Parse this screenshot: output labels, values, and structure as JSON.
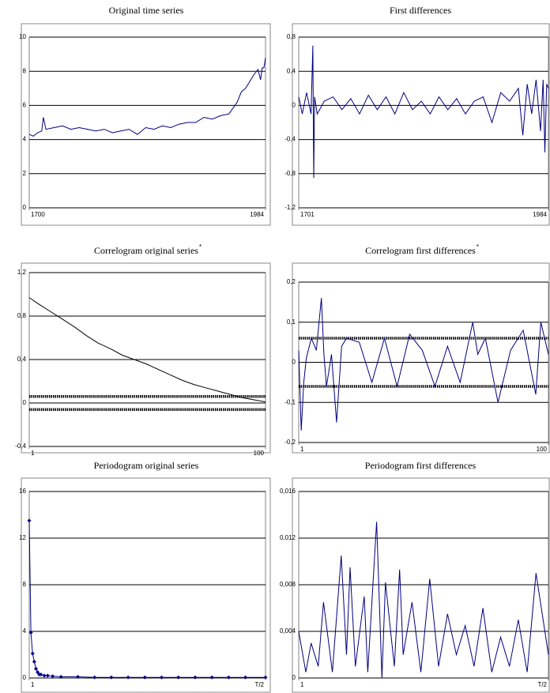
{
  "chart_data": [
    {
      "type": "line",
      "title": "Original time series",
      "color": "#000080",
      "x": [
        1700,
        1705,
        1710,
        1715,
        1717,
        1720,
        1730,
        1740,
        1750,
        1760,
        1770,
        1780,
        1790,
        1800,
        1810,
        1820,
        1830,
        1840,
        1850,
        1860,
        1870,
        1880,
        1890,
        1900,
        1910,
        1920,
        1930,
        1940,
        1950,
        1955,
        1960,
        1965,
        1970,
        1975,
        1978,
        1980,
        1982,
        1984
      ],
      "values": [
        4.3,
        4.2,
        4.4,
        4.5,
        5.3,
        4.6,
        4.7,
        4.8,
        4.6,
        4.7,
        4.6,
        4.5,
        4.6,
        4.4,
        4.5,
        4.6,
        4.3,
        4.7,
        4.6,
        4.8,
        4.7,
        4.9,
        5.0,
        5.0,
        5.3,
        5.2,
        5.4,
        5.5,
        6.2,
        6.8,
        7.0,
        7.4,
        7.8,
        8.1,
        7.5,
        8.2,
        8.2,
        8.8
      ],
      "xlim": [
        1700,
        1984
      ],
      "xticks": [
        1700,
        1984
      ],
      "ylim": [
        0,
        10
      ],
      "yticks": [
        0,
        2,
        4,
        6,
        8,
        10
      ],
      "grid": true
    },
    {
      "type": "line",
      "title": "First differences",
      "color": "#000080",
      "x": [
        1701,
        1705,
        1710,
        1715,
        1717,
        1718,
        1719,
        1722,
        1730,
        1740,
        1750,
        1760,
        1770,
        1780,
        1790,
        1800,
        1810,
        1820,
        1830,
        1840,
        1850,
        1860,
        1870,
        1880,
        1890,
        1900,
        1910,
        1920,
        1930,
        1940,
        1950,
        1955,
        1960,
        1965,
        1970,
        1975,
        1978,
        1980,
        1982,
        1984
      ],
      "values": [
        0.1,
        -0.1,
        0.15,
        -0.1,
        0.7,
        -0.85,
        0.1,
        -0.1,
        0.05,
        0.1,
        -0.05,
        0.08,
        -0.1,
        0.12,
        -0.05,
        0.1,
        -0.1,
        0.15,
        -0.05,
        0.05,
        -0.1,
        0.1,
        -0.05,
        0.08,
        -0.1,
        0.05,
        0.1,
        -0.2,
        0.15,
        0.05,
        0.2,
        -0.35,
        0.25,
        -0.1,
        0.3,
        -0.3,
        0.3,
        -0.55,
        0.25,
        0.2
      ],
      "xlim": [
        1701,
        1984
      ],
      "xticks": [
        1701,
        1984
      ],
      "ylim": [
        -1.2,
        0.8
      ],
      "yticks": [
        {
          "value": -1.2,
          "label": "-1,2"
        },
        {
          "value": -0.8,
          "label": "-0,8"
        },
        {
          "value": -0.4,
          "label": "-0,4"
        },
        0,
        {
          "value": 0.4,
          "label": "0,4"
        },
        {
          "value": 0.8,
          "label": "0,8"
        }
      ],
      "grid": true
    },
    {
      "type": "line",
      "title": "Correlogram original series",
      "title_mark": "*",
      "color": "#000000",
      "x": [
        1,
        5,
        10,
        15,
        20,
        25,
        30,
        35,
        40,
        45,
        50,
        55,
        60,
        65,
        70,
        75,
        80,
        85,
        90,
        95,
        100
      ],
      "values": [
        0.97,
        0.91,
        0.84,
        0.77,
        0.7,
        0.62,
        0.55,
        0.5,
        0.44,
        0.4,
        0.36,
        0.31,
        0.26,
        0.21,
        0.17,
        0.14,
        0.11,
        0.08,
        0.05,
        0.03,
        0.01
      ],
      "bands": [
        0.06,
        -0.06
      ],
      "xlim": [
        1,
        100
      ],
      "xticks": [
        1,
        100
      ],
      "ylim": [
        -0.4,
        1.2
      ],
      "yticks": [
        {
          "value": -0.4,
          "label": "-0,4"
        },
        0,
        {
          "value": 0.4,
          "label": "0,4"
        },
        {
          "value": 0.8,
          "label": "0,8"
        },
        {
          "value": 1.2,
          "label": "1,2"
        }
      ],
      "grid": true
    },
    {
      "type": "line",
      "title": "Correlogram first differences",
      "title_mark": "*",
      "color": "#000080",
      "x": [
        1,
        2,
        3,
        4,
        6,
        8,
        10,
        11,
        12,
        14,
        16,
        18,
        20,
        25,
        30,
        35,
        40,
        45,
        50,
        55,
        60,
        65,
        70,
        72,
        75,
        80,
        85,
        90,
        95,
        97,
        100
      ],
      "values": [
        0.03,
        -0.17,
        -0.05,
        0.01,
        0.06,
        0.03,
        0.16,
        0.02,
        -0.06,
        0.02,
        -0.15,
        0.04,
        0.06,
        0.05,
        -0.05,
        0.06,
        -0.06,
        0.07,
        0.03,
        -0.06,
        0.04,
        -0.05,
        0.1,
        0.02,
        0.06,
        -0.1,
        0.03,
        0.08,
        -0.08,
        0.1,
        0.02
      ],
      "bands": [
        0.06,
        -0.06
      ],
      "xlim": [
        1,
        100
      ],
      "xticks": [
        1,
        100
      ],
      "ylim": [
        -0.2,
        0.2
      ],
      "yticks": [
        {
          "value": -0.2,
          "label": "-0,2"
        },
        {
          "value": -0.1,
          "label": "-0,1"
        },
        0,
        {
          "value": 0.1,
          "label": "0,1"
        },
        {
          "value": 0.2,
          "label": "0,2"
        }
      ],
      "grid": true
    },
    {
      "type": "line",
      "title": "Periodogram original series",
      "color": "#000080",
      "markers": true,
      "x": [
        1,
        2,
        3,
        4,
        5,
        6,
        7,
        8,
        10,
        12,
        15,
        20,
        30,
        40,
        50,
        60,
        70,
        80,
        90,
        100,
        110,
        120,
        130,
        142
      ],
      "values": [
        13.5,
        3.9,
        2.1,
        1.4,
        0.8,
        0.5,
        0.3,
        0.3,
        0.2,
        0.2,
        0.15,
        0.1,
        0.1,
        0.05,
        0.05,
        0.05,
        0.05,
        0.05,
        0.05,
        0.05,
        0.05,
        0.05,
        0.05,
        0.05
      ],
      "xlim": [
        1,
        142
      ],
      "xticks": [
        1,
        {
          "value": 142,
          "label": "T/2"
        }
      ],
      "ylim": [
        0,
        16
      ],
      "yticks": [
        0,
        4,
        8,
        12,
        16
      ],
      "grid": true
    },
    {
      "type": "line",
      "title": "Periodogram first differences",
      "color": "#000080",
      "x": [
        1,
        5,
        8,
        12,
        15,
        20,
        25,
        28,
        30,
        33,
        38,
        40,
        45,
        48,
        50,
        55,
        58,
        60,
        65,
        70,
        75,
        80,
        85,
        90,
        95,
        100,
        105,
        110,
        115,
        120,
        125,
        130,
        135,
        142
      ],
      "values": [
        0.004,
        0.0005,
        0.003,
        0.001,
        0.0065,
        0.0005,
        0.0105,
        0.002,
        0.0095,
        0.001,
        0.007,
        0.0005,
        0.0134,
        0.0,
        0.0082,
        0.001,
        0.0093,
        0.002,
        0.0065,
        0.0005,
        0.0085,
        0.001,
        0.0055,
        0.002,
        0.0045,
        0.001,
        0.006,
        0.0005,
        0.0035,
        0.001,
        0.005,
        0.0005,
        0.009,
        0.002
      ],
      "xlim": [
        1,
        142
      ],
      "xticks": [
        1,
        {
          "value": 142,
          "label": "T/2"
        }
      ],
      "ylim": [
        0,
        0.016
      ],
      "yticks": [
        0,
        {
          "value": 0.004,
          "label": "0,004"
        },
        {
          "value": 0.008,
          "label": "0,008"
        },
        {
          "value": 0.012,
          "label": "0,012"
        },
        {
          "value": 0.016,
          "label": "0,016"
        }
      ],
      "grid": true
    }
  ]
}
